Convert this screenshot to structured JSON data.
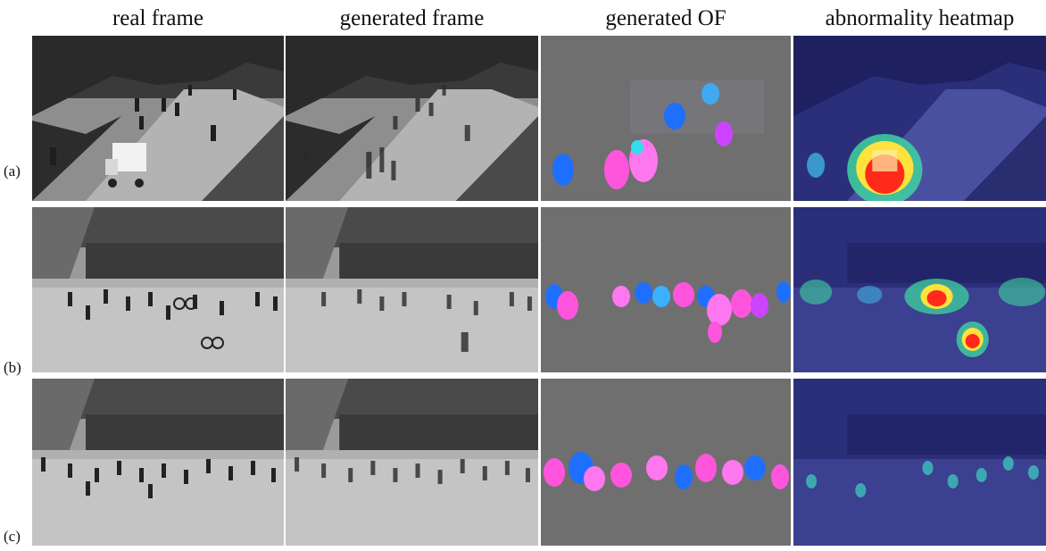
{
  "figure": {
    "column_headers": [
      "real frame",
      "generated frame",
      "generated OF",
      "abnormality heatmap"
    ],
    "rows": [
      {
        "label": "(a)",
        "scene": "walkway with pedestrians and a small white utility cart",
        "anomaly": "vehicle"
      },
      {
        "label": "(b)",
        "scene": "plaza with pedestrians and cyclists",
        "anomaly": "bicycles"
      },
      {
        "label": "(c)",
        "scene": "plaza with pedestrians only",
        "anomaly": "none"
      }
    ],
    "colors": {
      "of_background": "#6f6f6f",
      "of_blue": "#1f6fff",
      "of_magenta": "#ff55dd",
      "heatmap_base": "#2b2f7a",
      "heatmap_hot": "#ff2a1a",
      "heatmap_warm": "#ffe23a",
      "heatmap_mid": "#3fd3a0"
    }
  }
}
